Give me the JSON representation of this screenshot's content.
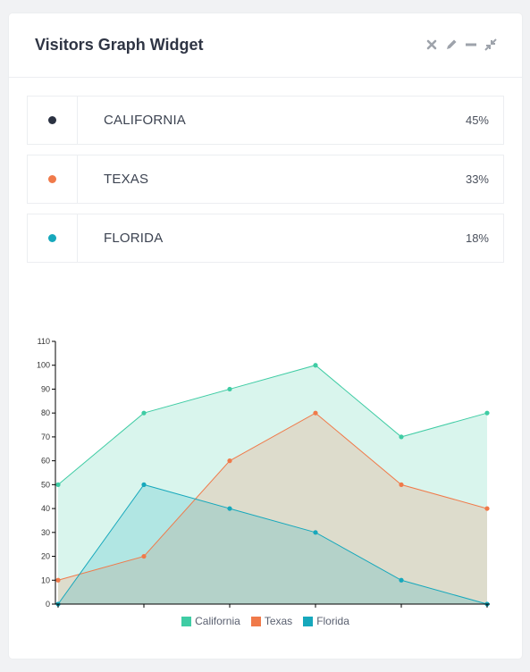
{
  "widget": {
    "title": "Visitors Graph Widget",
    "tools": [
      "close-icon",
      "pencil-icon",
      "minimize-icon",
      "compress-icon"
    ]
  },
  "states": [
    {
      "name": "CALIFORNIA",
      "percent": "45%",
      "color": "#2b3242"
    },
    {
      "name": "TEXAS",
      "percent": "33%",
      "color": "#f07a4a"
    },
    {
      "name": "FLORIDA",
      "percent": "18%",
      "color": "#16a8bc"
    }
  ],
  "chart_data": {
    "type": "area",
    "x": [
      0,
      1,
      2,
      3,
      4,
      5
    ],
    "series": [
      {
        "name": "California",
        "values": [
          50,
          80,
          90,
          100,
          70,
          80
        ],
        "color": "#3fcca4"
      },
      {
        "name": "Texas",
        "values": [
          10,
          20,
          60,
          80,
          50,
          40
        ],
        "color": "#f07a4a"
      },
      {
        "name": "Florida",
        "values": [
          0,
          50,
          40,
          30,
          10,
          0
        ],
        "color": "#16a8bc"
      }
    ],
    "ylim": [
      0,
      110
    ],
    "yticks": [
      0,
      10,
      20,
      30,
      40,
      50,
      60,
      70,
      80,
      90,
      100,
      110
    ],
    "xticks": [
      0,
      1,
      2,
      3,
      4,
      5
    ],
    "legend_position": "bottom"
  }
}
